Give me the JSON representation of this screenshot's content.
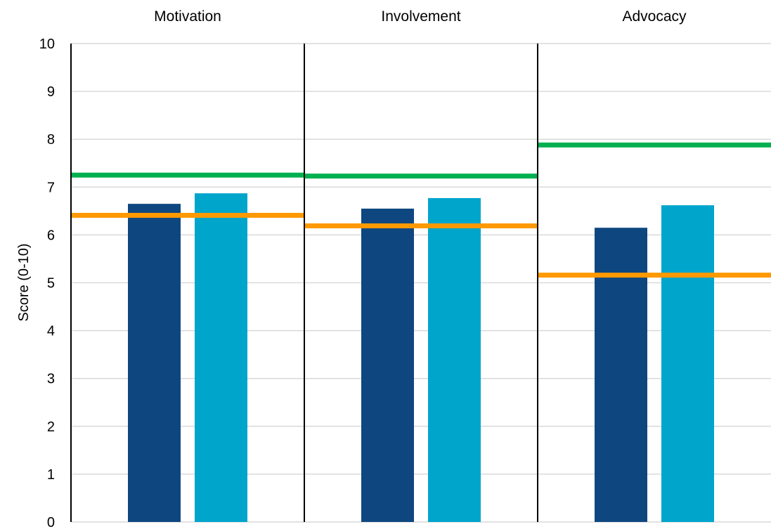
{
  "chart_data": {
    "type": "bar",
    "ylabel": "Score (0-10)",
    "ylim": [
      0,
      10
    ],
    "yticks": [
      "0",
      "1",
      "2",
      "3",
      "4",
      "5",
      "6",
      "7",
      "8",
      "9",
      "10"
    ],
    "grid": true,
    "categories": [
      "Motivation",
      "Involvement",
      "Advocacy"
    ],
    "series": [
      {
        "values": [
          6.65,
          6.55,
          6.15
        ],
        "color": "#0e4780"
      },
      {
        "values": [
          6.87,
          6.77,
          6.62
        ],
        "color": "#00a5cc"
      }
    ],
    "reference_lines": [
      {
        "values": [
          7.25,
          7.23,
          7.88
        ],
        "color": "#00b050"
      },
      {
        "values": [
          6.41,
          6.19,
          5.16
        ],
        "color": "#ff9900"
      }
    ]
  }
}
